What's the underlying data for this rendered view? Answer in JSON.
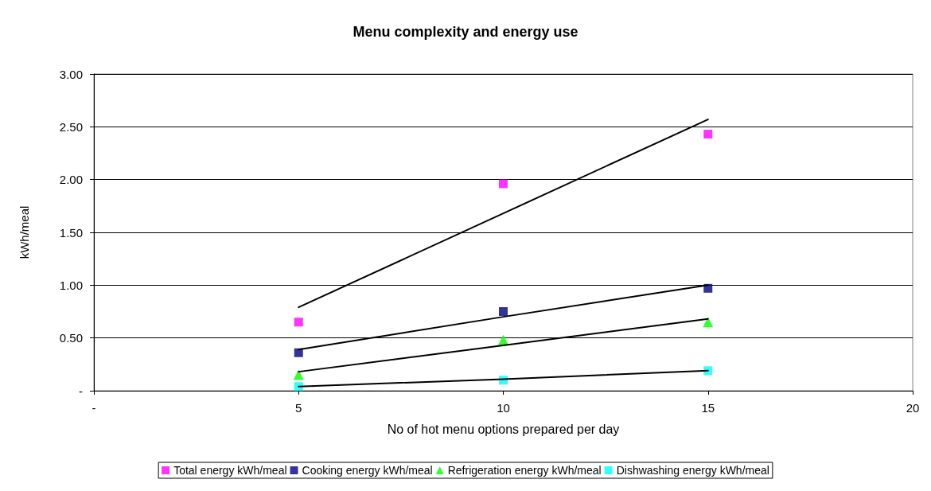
{
  "chart_data": {
    "type": "scatter",
    "title": "Menu complexity and energy use",
    "xlabel": "No of hot menu options prepared per day",
    "ylabel": "kWh/meal",
    "x": [
      5,
      10,
      15
    ],
    "series": [
      {
        "name": "Total energy kWh/meal",
        "color": "#ff00ff",
        "marker": "square",
        "values": [
          0.65,
          1.96,
          2.43
        ]
      },
      {
        "name": "Cooking energy kWh/meal",
        "color": "#000080",
        "marker": "square",
        "values": [
          0.36,
          0.75,
          0.97
        ]
      },
      {
        "name": "Refrigeration energy kWh/meal",
        "color": "#00ff00",
        "marker": "triangle",
        "values": [
          0.15,
          0.48,
          0.65
        ]
      },
      {
        "name": "Dishwashing energy kWh/meal",
        "color": "#00ffff",
        "marker": "square",
        "values": [
          0.04,
          0.1,
          0.19
        ]
      },
      {
        "type": "line",
        "color": "#000000",
        "marker": "none",
        "values": [
          0.79,
          1.68,
          2.57
        ]
      },
      {
        "type": "line",
        "color": "#000000",
        "marker": "none",
        "values": [
          0.39,
          0.7,
          1.0
        ]
      },
      {
        "type": "line",
        "color": "#000000",
        "marker": "none",
        "values": [
          0.18,
          0.43,
          0.68
        ]
      },
      {
        "type": "line",
        "color": "#000000",
        "marker": "none",
        "values": [
          0.04,
          0.11,
          0.19
        ]
      }
    ],
    "xlim": [
      0,
      20
    ],
    "xticks": [
      {
        "value": 0,
        "label": "-"
      },
      5,
      10,
      15,
      20
    ],
    "ylim": [
      0,
      3
    ],
    "yticks": [
      {
        "value": 0,
        "label": "-"
      },
      {
        "value": 0.5,
        "label": "0.50"
      },
      {
        "value": 1,
        "label": "1.00"
      },
      {
        "value": 1.5,
        "label": "1.50"
      },
      {
        "value": 2,
        "label": "2.00"
      },
      {
        "value": 2.5,
        "label": "2.50"
      },
      {
        "value": 3,
        "label": "3.00"
      }
    ],
    "grid": "y",
    "legend": "bottom",
    "line_style": "solid"
  }
}
